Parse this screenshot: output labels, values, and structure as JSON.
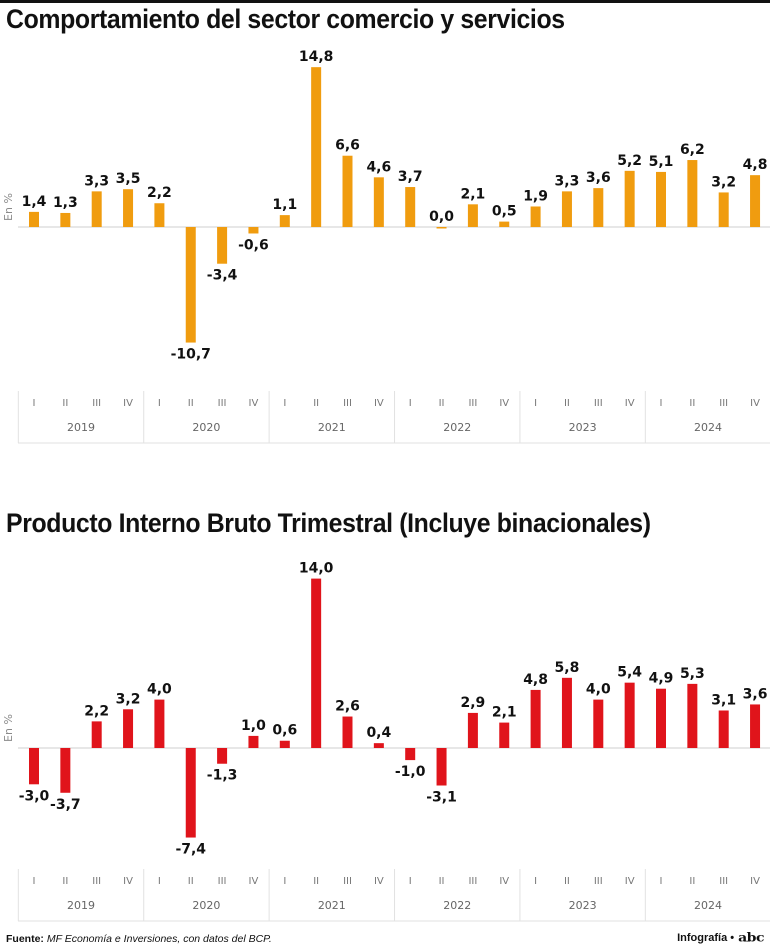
{
  "chart_data": [
    {
      "type": "bar",
      "title": "Comportamiento del sector comercio y servicios",
      "ylabel": "En %",
      "years": [
        "2019",
        "2020",
        "2021",
        "2022",
        "2023",
        "2024"
      ],
      "quarters": [
        "I",
        "II",
        "III",
        "IV"
      ],
      "values": [
        1.4,
        1.3,
        3.3,
        3.5,
        2.2,
        -10.7,
        -3.4,
        -0.6,
        1.1,
        14.8,
        6.6,
        4.6,
        3.7,
        0.0,
        2.1,
        0.5,
        1.9,
        3.3,
        3.6,
        5.2,
        5.1,
        6.2,
        3.2,
        4.8
      ],
      "labels": [
        "1,4",
        "1,3",
        "3,3",
        "3,5",
        "2,2",
        "-10,7",
        "-3,4",
        "-0,6",
        "1,1",
        "14,8",
        "6,6",
        "4,6",
        "3,7",
        "0,0",
        "2,1",
        "0,5",
        "1,9",
        "3,3",
        "3,6",
        "5,2",
        "5,1",
        "6,2",
        "3,2",
        "4,8"
      ],
      "color": "#f09c0f"
    },
    {
      "type": "bar",
      "title": "Producto Interno Bruto Trimestral (Incluye binacionales)",
      "ylabel": "En %",
      "years": [
        "2019",
        "2020",
        "2021",
        "2022",
        "2023",
        "2024"
      ],
      "quarters": [
        "I",
        "II",
        "III",
        "IV"
      ],
      "values": [
        -3.0,
        -3.7,
        2.2,
        3.2,
        4.0,
        -7.4,
        -1.3,
        1.0,
        0.6,
        14.0,
        2.6,
        0.4,
        -1.0,
        -3.1,
        2.9,
        2.1,
        4.8,
        5.8,
        4.0,
        5.4,
        4.9,
        5.3,
        3.1,
        3.6
      ],
      "labels": [
        "-3,0",
        "-3,7",
        "2,2",
        "3,2",
        "4,0",
        "-7,4",
        "-1,3",
        "1,0",
        "0,6",
        "14,0",
        "2,6",
        "0,4",
        "-1,0",
        "-3,1",
        "2,9",
        "2,1",
        "4,8",
        "5,8",
        "4,0",
        "5,4",
        "4,9",
        "5,3",
        "3,1",
        "3,6"
      ],
      "color": "#e0141b"
    }
  ],
  "footer": {
    "source_label": "Fuente:",
    "source_text": "MF Economía e Inversiones, con datos del BCP.",
    "credit": "Infografía •",
    "logo": "abc"
  }
}
